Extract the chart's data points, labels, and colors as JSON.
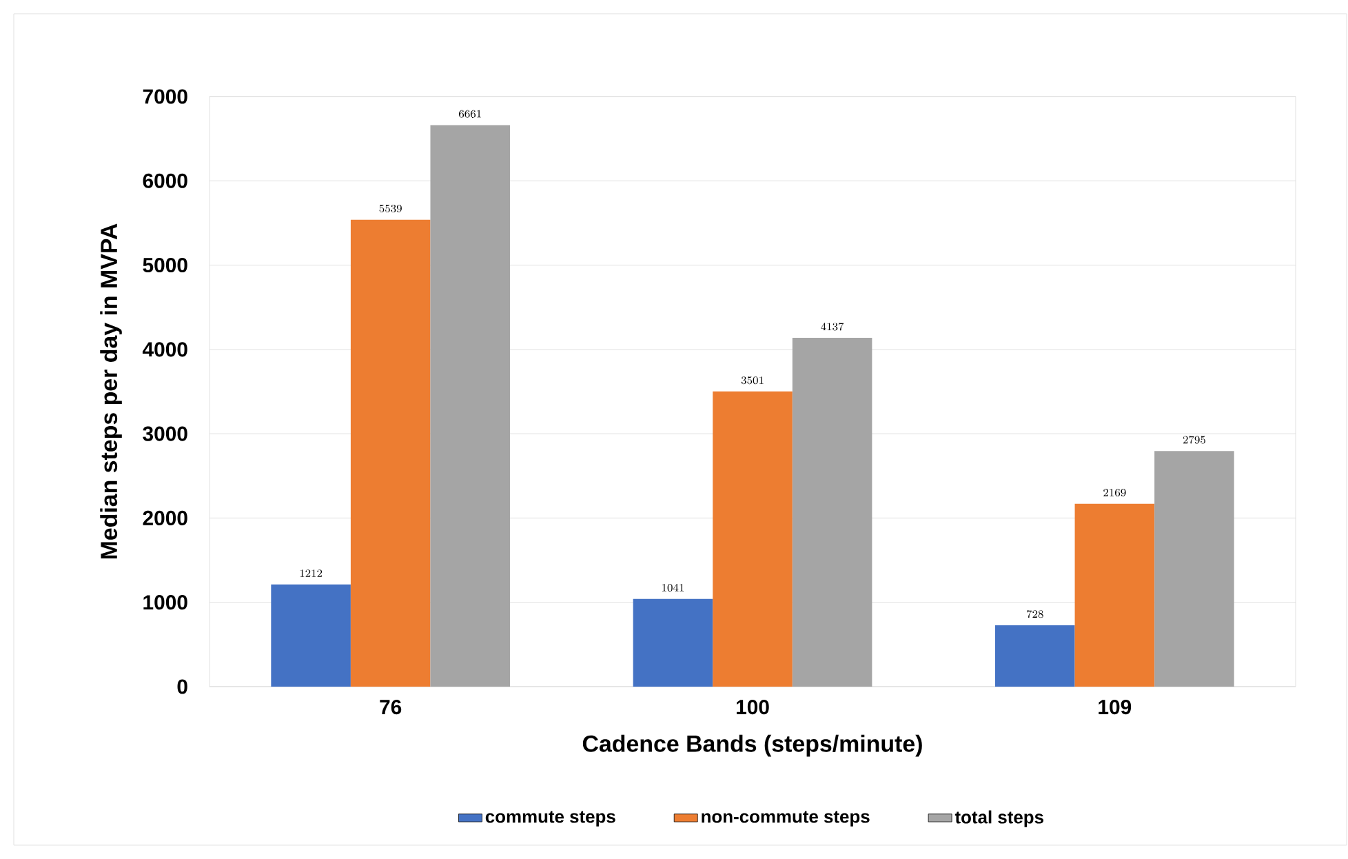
{
  "chart_data": {
    "type": "bar",
    "xlabel": "Cadence Bands (steps/minute)",
    "ylabel": "Median steps per day in MVPA",
    "categories": [
      "76",
      "100",
      "109"
    ],
    "series": [
      {
        "name": "commute steps",
        "color": "#4472c4",
        "values": [
          1212,
          1041,
          728
        ]
      },
      {
        "name": "non-commute steps",
        "color": "#ed7d31",
        "values": [
          5539,
          3501,
          2169
        ]
      },
      {
        "name": "total steps",
        "color": "#a5a5a5",
        "values": [
          6661,
          4137,
          2795
        ]
      }
    ],
    "ylim": [
      0,
      7000
    ],
    "yticks": [
      0,
      1000,
      2000,
      3000,
      4000,
      5000,
      6000,
      7000
    ],
    "grid": "y",
    "legend": "bottom",
    "data_labels": true
  }
}
